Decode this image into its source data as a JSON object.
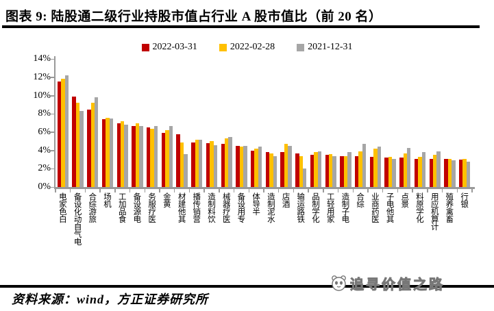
{
  "title": "图表 9: 陆股通二级行业持股市值占行业 A 股市值比（前 20 名）",
  "footer": {
    "source": "资料来源：wind，方正证券研究所"
  },
  "watermark": {
    "text": "追寻价值之路",
    "logo": "panda-face-logo"
  },
  "colors": {
    "red": "#C00000",
    "yellow": "#FFC000",
    "gray": "#A6A6A6",
    "axis": "#999999"
  },
  "chart_data": {
    "type": "bar",
    "title": "陆股通二级行业持股市值占行业A股市值比（前20名）",
    "categories": [
      "白色家电",
      "电气自动化设备",
      "旅游综合",
      "机场",
      "食品加工",
      "电源设备",
      "医疗服务",
      "黄金",
      "其他建材",
      "营销传播",
      "饮料制造",
      "医疗器械",
      "专用设备",
      "半导体",
      "水泥制造",
      "酒店",
      "铁路运输",
      "化学制品",
      "家用轻工",
      "电子制造",
      "综合",
      "医药商业",
      "其他电子",
      "景点",
      "化学原料",
      "计算机应用",
      "畜禽养殖",
      "银行"
    ],
    "series": [
      {
        "name": "2022-03-31",
        "color": "#C00000",
        "values": [
          11.5,
          9.9,
          8.5,
          7.4,
          7.0,
          6.7,
          6.5,
          5.9,
          5.8,
          4.9,
          4.8,
          4.7,
          4.5,
          4.0,
          3.8,
          3.8,
          3.7,
          3.5,
          3.5,
          3.4,
          3.4,
          3.3,
          3.2,
          3.2,
          3.1,
          3.1,
          3.1,
          3.0
        ]
      },
      {
        "name": "2022-02-28",
        "color": "#FFC000",
        "values": [
          11.8,
          9.2,
          9.2,
          7.6,
          7.2,
          7.0,
          6.4,
          6.2,
          4.9,
          5.2,
          5.0,
          5.3,
          4.4,
          4.2,
          3.7,
          4.7,
          3.4,
          3.8,
          3.6,
          3.4,
          3.9,
          4.2,
          3.3,
          3.7,
          3.3,
          3.5,
          3.1,
          3.1
        ]
      },
      {
        "name": "2021-12-31",
        "color": "#A6A6A6",
        "values": [
          12.2,
          8.3,
          9.8,
          7.5,
          6.8,
          6.7,
          6.7,
          6.7,
          3.6,
          5.2,
          4.6,
          5.5,
          4.5,
          4.4,
          3.4,
          4.5,
          2.0,
          3.9,
          3.4,
          3.8,
          4.7,
          4.4,
          3.1,
          4.3,
          3.8,
          3.9,
          2.9,
          2.8
        ]
      }
    ],
    "ylabel": "",
    "xlabel": "",
    "ylim": [
      0,
      14
    ],
    "ytick_step": 2,
    "ytick_suffix": "%",
    "grid": false,
    "legend_position": "top",
    "x_label_orientation": "vertical-bottom-to-top"
  }
}
